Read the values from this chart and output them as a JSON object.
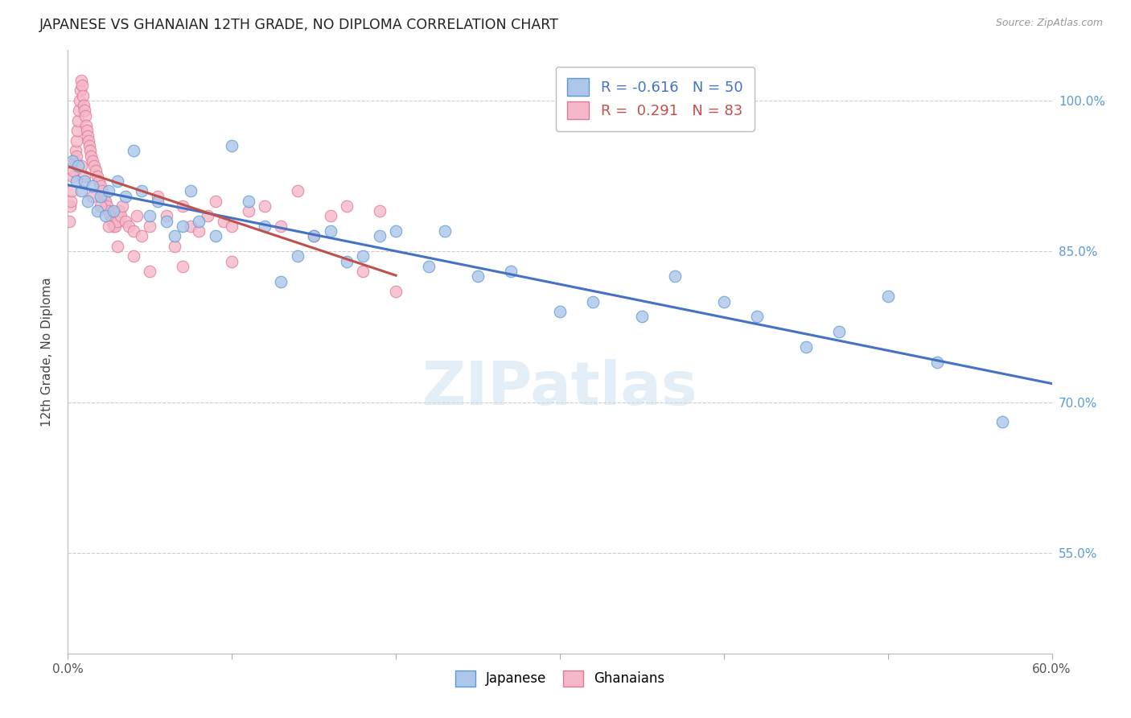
{
  "title": "JAPANESE VS GHANAIAN 12TH GRADE, NO DIPLOMA CORRELATION CHART",
  "source": "Source: ZipAtlas.com",
  "ylabel": "12th Grade, No Diploma",
  "xmin": 0.0,
  "xmax": 60.0,
  "ymin": 45.0,
  "ymax": 105.0,
  "y_ticks": [
    55.0,
    70.0,
    85.0,
    100.0
  ],
  "y_tick_labels": [
    "55.0%",
    "70.0%",
    "85.0%",
    "100.0%"
  ],
  "japanese_color": "#aec6e8",
  "ghanaian_color": "#f5b8c8",
  "japanese_edge_color": "#5b9bd5",
  "ghanaian_edge_color": "#e07898",
  "trend_blue": "#4472c4",
  "trend_pink": "#c0504d",
  "legend_R_japanese": "-0.616",
  "legend_N_japanese": "50",
  "legend_R_ghanaian": "0.291",
  "legend_N_ghanaian": "83",
  "watermark": "ZIPatlas",
  "japanese_x": [
    0.3,
    0.5,
    0.6,
    0.8,
    1.0,
    1.2,
    1.5,
    1.8,
    2.0,
    2.3,
    2.5,
    2.8,
    3.0,
    3.5,
    4.0,
    4.5,
    5.0,
    5.5,
    6.0,
    6.5,
    7.0,
    7.5,
    8.0,
    9.0,
    10.0,
    11.0,
    12.0,
    13.0,
    14.0,
    15.0,
    16.0,
    17.0,
    18.0,
    19.0,
    20.0,
    22.0,
    23.0,
    25.0,
    27.0,
    30.0,
    32.0,
    35.0,
    37.0,
    40.0,
    42.0,
    45.0,
    47.0,
    50.0,
    53.0,
    57.0
  ],
  "japanese_y": [
    94.0,
    92.0,
    93.5,
    91.0,
    92.0,
    90.0,
    91.5,
    89.0,
    90.5,
    88.5,
    91.0,
    89.0,
    92.0,
    90.5,
    95.0,
    91.0,
    88.5,
    90.0,
    88.0,
    86.5,
    87.5,
    91.0,
    88.0,
    86.5,
    95.5,
    90.0,
    87.5,
    82.0,
    84.5,
    86.5,
    87.0,
    84.0,
    84.5,
    86.5,
    87.0,
    83.5,
    87.0,
    82.5,
    83.0,
    79.0,
    80.0,
    78.5,
    82.5,
    80.0,
    78.5,
    75.5,
    77.0,
    80.5,
    74.0,
    68.0
  ],
  "ghanaian_x": [
    0.1,
    0.15,
    0.2,
    0.25,
    0.3,
    0.35,
    0.4,
    0.45,
    0.5,
    0.55,
    0.6,
    0.65,
    0.7,
    0.75,
    0.8,
    0.85,
    0.9,
    0.95,
    1.0,
    1.05,
    1.1,
    1.15,
    1.2,
    1.25,
    1.3,
    1.35,
    1.4,
    1.5,
    1.6,
    1.7,
    1.8,
    1.9,
    2.0,
    2.1,
    2.2,
    2.3,
    2.4,
    2.5,
    2.6,
    2.7,
    2.8,
    2.9,
    3.0,
    3.1,
    3.2,
    3.3,
    3.5,
    3.7,
    4.0,
    4.2,
    4.5,
    5.0,
    5.5,
    6.0,
    6.5,
    7.0,
    7.5,
    8.0,
    8.5,
    9.0,
    9.5,
    10.0,
    11.0,
    12.0,
    13.0,
    14.0,
    15.0,
    16.0,
    17.0,
    18.0,
    19.0,
    20.0,
    0.5,
    0.8,
    1.0,
    1.5,
    2.0,
    2.5,
    3.0,
    4.0,
    5.0,
    7.0,
    10.0
  ],
  "ghanaian_y": [
    88.0,
    89.5,
    90.0,
    91.0,
    92.5,
    93.0,
    94.0,
    95.0,
    96.0,
    97.0,
    98.0,
    99.0,
    100.0,
    101.0,
    102.0,
    101.5,
    100.5,
    99.5,
    99.0,
    98.5,
    97.5,
    97.0,
    96.5,
    96.0,
    95.5,
    95.0,
    94.5,
    94.0,
    93.5,
    93.0,
    92.5,
    92.0,
    91.5,
    91.0,
    90.5,
    90.0,
    89.5,
    89.0,
    88.5,
    88.0,
    87.5,
    87.5,
    88.0,
    89.0,
    88.5,
    89.5,
    88.0,
    87.5,
    87.0,
    88.5,
    86.5,
    87.5,
    90.5,
    88.5,
    85.5,
    89.5,
    87.5,
    87.0,
    88.5,
    90.0,
    88.0,
    87.5,
    89.0,
    89.5,
    87.5,
    91.0,
    86.5,
    88.5,
    89.5,
    83.0,
    89.0,
    81.0,
    94.5,
    93.5,
    92.5,
    90.5,
    89.5,
    87.5,
    85.5,
    84.5,
    83.0,
    83.5,
    84.0
  ]
}
